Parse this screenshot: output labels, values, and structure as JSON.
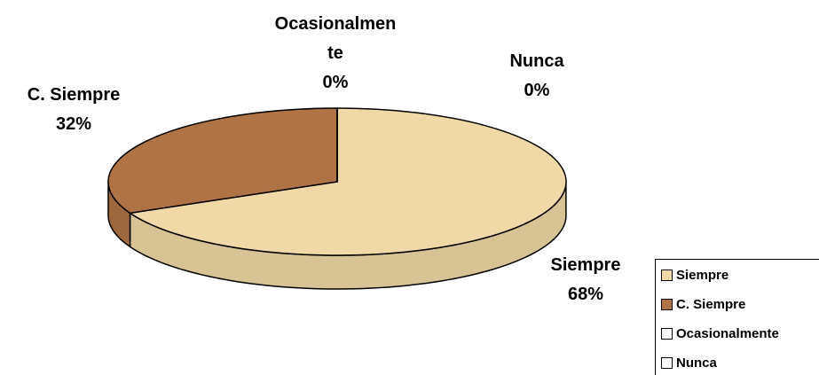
{
  "chart_data": {
    "type": "pie",
    "categories": [
      "Siempre",
      "C. Siempre",
      "Ocasionalmente",
      "Nunca"
    ],
    "values": [
      68,
      32,
      0,
      0
    ],
    "value_labels": [
      "68%",
      "32%",
      "0%",
      "0%"
    ],
    "colors": [
      "#f0d9a6",
      "#b07346",
      "#ffffff",
      "#ffffff"
    ],
    "legend": "right"
  }
}
